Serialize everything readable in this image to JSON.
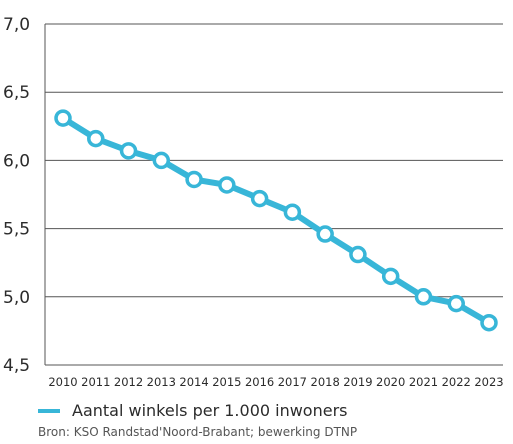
{
  "chart_data": {
    "type": "line",
    "title": "",
    "xlabel": "",
    "ylabel": "",
    "categories": [
      "2010",
      "2011",
      "2012",
      "2013",
      "2014",
      "2015",
      "2016",
      "2017",
      "2018",
      "2019",
      "2020",
      "2021",
      "2022",
      "2023"
    ],
    "ylim": [
      4.5,
      7.0
    ],
    "y_ticks": [
      "7,0",
      "6,5",
      "6,0",
      "5,5",
      "5,0",
      "4,5"
    ],
    "y_tick_values": [
      7.0,
      6.5,
      6.0,
      5.5,
      5.0,
      4.5
    ],
    "grid": true,
    "legend_position": "bottom-left",
    "series": [
      {
        "name": "Aantal winkels per 1.000 inwoners",
        "color": "#38b6d8",
        "values": [
          6.31,
          6.16,
          6.07,
          6.0,
          5.86,
          5.82,
          5.72,
          5.62,
          5.46,
          5.31,
          5.15,
          5.0,
          4.95,
          4.81
        ]
      }
    ]
  },
  "legend": {
    "label": "Aantal winkels per 1.000 inwoners"
  },
  "source": "Bron: KSO Randstad'Noord-Brabant; bewerking DTNP"
}
